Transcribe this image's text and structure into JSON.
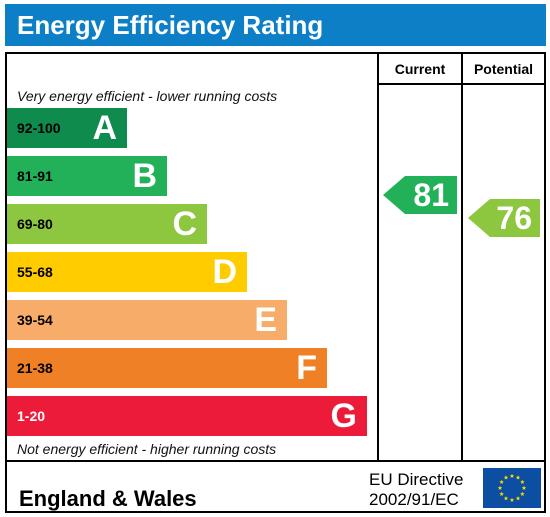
{
  "title": "Energy Efficiency Rating",
  "columns": {
    "current": "Current",
    "potential": "Potential"
  },
  "top_caption": "Very energy efficient - lower running costs",
  "bottom_caption": "Not energy efficient - higher running costs",
  "footer": {
    "region": "England & Wales",
    "directive_line1": "EU Directive",
    "directive_line2": "2002/91/EC"
  },
  "colors": {
    "title_bar": "#0c7fc6",
    "flag": "#0b4ea2",
    "flag_stars": "#ffdd00"
  },
  "chart_data": {
    "type": "bar",
    "categories": [
      "A",
      "B",
      "C",
      "D",
      "E",
      "F",
      "G"
    ],
    "bands": [
      {
        "letter": "A",
        "range": "92-100",
        "color": "#0f8b4e",
        "range_color": "#000000"
      },
      {
        "letter": "B",
        "range": "81-91",
        "color": "#22b159",
        "range_color": "#000000"
      },
      {
        "letter": "C",
        "range": "69-80",
        "color": "#8dc63f",
        "range_color": "#000000"
      },
      {
        "letter": "D",
        "range": "55-68",
        "color": "#ffcc00",
        "range_color": "#000000"
      },
      {
        "letter": "E",
        "range": "39-54",
        "color": "#f7ac6a",
        "range_color": "#000000"
      },
      {
        "letter": "F",
        "range": "21-38",
        "color": "#ef8025",
        "range_color": "#000000"
      },
      {
        "letter": "G",
        "range": "1-20",
        "color": "#ed1b3a",
        "range_color": "#ffffff"
      }
    ],
    "ratings": [
      {
        "label": "Current",
        "value": 81,
        "band": "B",
        "color": "#22b159"
      },
      {
        "label": "Potential",
        "value": 76,
        "band": "C",
        "color": "#8dc63f"
      }
    ]
  }
}
